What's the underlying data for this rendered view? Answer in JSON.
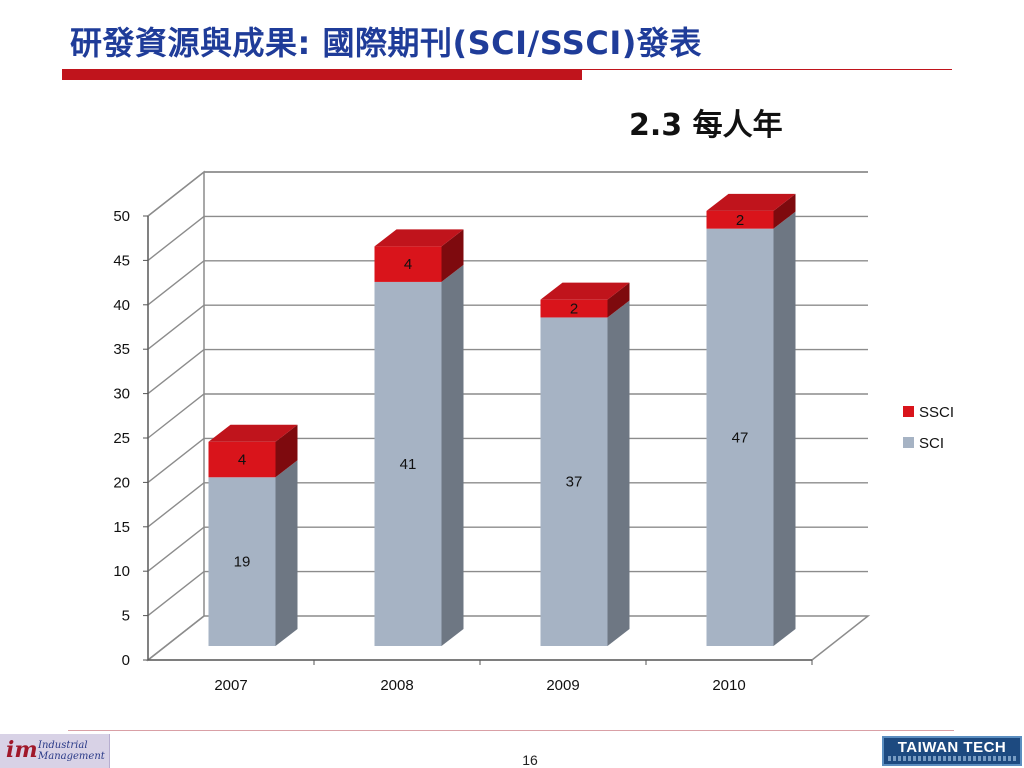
{
  "slide": {
    "title": "研發資源與成果: 國際期刊(SCI/SSCI)發表",
    "subtitle": "2.3 每人年",
    "page_number": "16"
  },
  "footer": {
    "left_logo_mark": "im",
    "left_logo_text": "Industrial Management",
    "right_logo_text": "TAIWAN TECH",
    "right_logo_subtext": "National Taiwan University of Science and Technology"
  },
  "colors": {
    "title": "#1f3c99",
    "accent": "#c0141c",
    "sci_front": "#a6b3c4",
    "sci_side": "#6e7783",
    "ssci_front": "#d9141b",
    "ssci_side": "#7e0a0e",
    "grid": "#8c8c8c"
  },
  "chart_data": {
    "type": "bar",
    "stacked": true,
    "three_d": true,
    "categories": [
      "2007",
      "2008",
      "2009",
      "2010"
    ],
    "series": [
      {
        "name": "SCI",
        "values": [
          19,
          41,
          37,
          47
        ]
      },
      {
        "name": "SSCI",
        "values": [
          4,
          4,
          2,
          2
        ]
      }
    ],
    "yticks": [
      "0",
      "5",
      "10",
      "15",
      "20",
      "25",
      "30",
      "35",
      "40",
      "45",
      "50"
    ],
    "ylim": [
      0,
      50
    ],
    "grid": true,
    "legend": "right"
  }
}
